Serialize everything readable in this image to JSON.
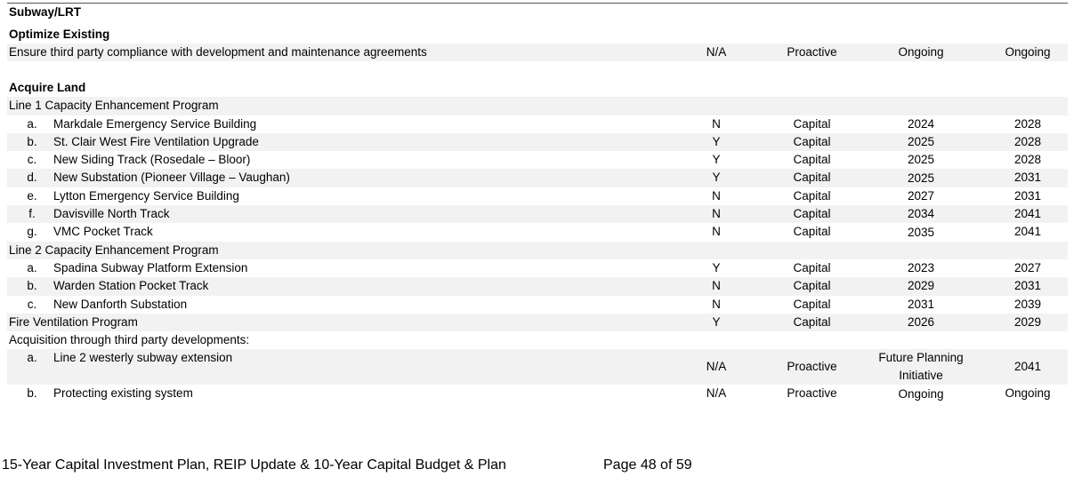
{
  "header": {
    "title": "Subway/LRT"
  },
  "sections": [
    {
      "heading": "Optimize Existing",
      "rows": [
        {
          "label": "Ensure third party compliance with development and maintenance agreements",
          "cells": [
            "N/A",
            "Proactive",
            "Ongoing",
            "Ongoing"
          ]
        }
      ]
    },
    {
      "heading": "Acquire Land",
      "rows": [
        {
          "label": "Line 1 Capacity Enhancement Program"
        },
        {
          "letter": "a.",
          "label": "Markdale Emergency Service Building",
          "cells": [
            "N",
            "Capital",
            "2024",
            "2028"
          ]
        },
        {
          "letter": "b.",
          "label": "St. Clair West Fire Ventilation Upgrade",
          "cells": [
            "Y",
            "Capital",
            "2025",
            "2028"
          ]
        },
        {
          "letter": "c.",
          "label": "New Siding Track (Rosedale – Bloor)",
          "cells": [
            "Y",
            "Capital",
            "2025",
            "2028"
          ]
        },
        {
          "letter": "d.",
          "label": "New Substation (Pioneer Village – Vaughan)",
          "cells": [
            "Y",
            "Capital",
            "2025",
            "2031"
          ]
        },
        {
          "letter": "e.",
          "label": "Lytton Emergency Service Building",
          "cells": [
            "N",
            "Capital",
            "2027",
            "2031"
          ]
        },
        {
          "letter": "f.",
          "label": "Davisville North Track",
          "cells": [
            "N",
            "Capital",
            "2034",
            "2041"
          ]
        },
        {
          "letter": "g.",
          "label": "VMC Pocket Track",
          "cells": [
            "N",
            "Capital",
            "2035",
            "2041"
          ]
        },
        {
          "label": "Line 2 Capacity Enhancement Program"
        },
        {
          "letter": "a.",
          "label": "Spadina Subway Platform Extension",
          "cells": [
            "Y",
            "Capital",
            "2023",
            "2027"
          ]
        },
        {
          "letter": "b.",
          "label": "Warden Station Pocket Track",
          "cells": [
            "N",
            "Capital",
            "2029",
            "2031"
          ]
        },
        {
          "letter": "c.",
          "label": "New Danforth Substation",
          "cells": [
            "N",
            "Capital",
            "2031",
            "2039"
          ]
        },
        {
          "label": "Fire Ventilation Program",
          "cells": [
            "Y",
            "Capital",
            "2026",
            "2029"
          ]
        },
        {
          "label": "Acquisition through third party developments:"
        },
        {
          "letter": "a.",
          "label": "Line 2 westerly subway extension",
          "cells": [
            "N/A",
            "Proactive",
            "Future Planning Initiative",
            "2041"
          ]
        },
        {
          "letter": "b.",
          "label": "Protecting existing system",
          "cells": [
            "N/A",
            "Proactive",
            "Ongoing",
            "Ongoing"
          ]
        }
      ]
    }
  ],
  "footer": {
    "document": "15-Year Capital Investment Plan, REIP Update & 10-Year Capital Budget & Plan",
    "page": "Page 48 of 59"
  }
}
